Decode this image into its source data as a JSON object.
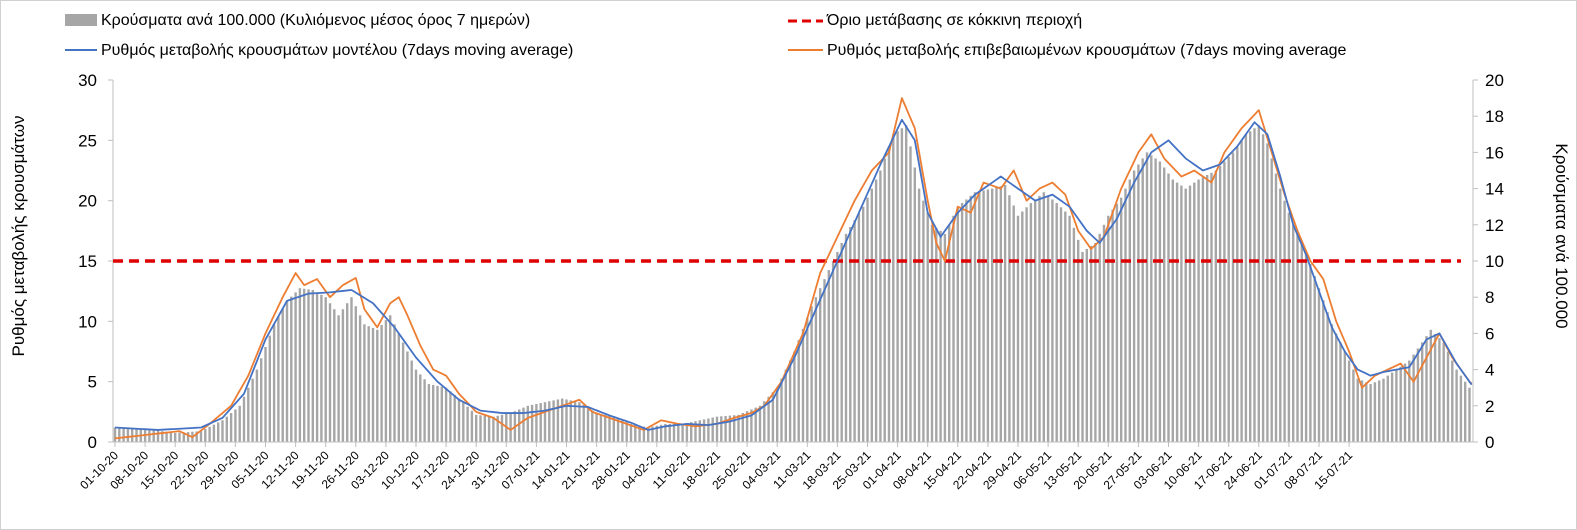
{
  "colors": {
    "bars": "#a6a6a6",
    "model_line": "#4472c4",
    "confirmed_line": "#ed7d31",
    "threshold_line": "#e00000",
    "axis": "#bfbfbf"
  },
  "chart_data": {
    "type": "bar",
    "legend": {
      "bars": "Κρούσματα ανά 100.000 (Κυλιόμενος μέσος όρος 7 ημερών)",
      "threshold": "Όριο μετάβασης σε κόκκινη περιοχή",
      "model": "Ρυθμός μεταβολής κρουσμάτων μοντέλου (7days moving average)",
      "confirmed": "Ρυθμός μεταβολής επιβεβαιωμένων κρουσμάτων (7days moving average"
    },
    "ylabel_left": "Ρυθμός μεταβολής κρουσμάτων",
    "ylabel_right": "Κρούσματα ανά 100.000",
    "ylim_left": [
      0,
      30
    ],
    "ylim_right": [
      0,
      20
    ],
    "yticks_left": [
      "0",
      "5",
      "10",
      "15",
      "20",
      "25",
      "30"
    ],
    "yticks_right": [
      "0",
      "2",
      "4",
      "6",
      "8",
      "10",
      "12",
      "14",
      "16",
      "18",
      "20"
    ],
    "start_date": "2020-10-01",
    "n_days": 300,
    "x_tick_labels": [
      "01-10-20",
      "08-10-20",
      "15-10-20",
      "22-10-20",
      "29-10-20",
      "05-11-20",
      "12-11-20",
      "19-11-20",
      "26-11-20",
      "03-12-20",
      "10-12-20",
      "17-12-20",
      "24-12-20",
      "31-12-20",
      "07-01-21",
      "14-01-21",
      "21-01-21",
      "28-01-21",
      "04-02-21",
      "11-02-21",
      "18-02-21",
      "25-02-21",
      "04-03-21",
      "11-03-21",
      "18-03-21",
      "25-03-21",
      "01-04-21",
      "08-04-21",
      "15-04-21",
      "22-04-21",
      "29-04-21",
      "06-05-21",
      "13-05-21",
      "20-05-21",
      "27-05-21",
      "03-06-21",
      "10-06-21",
      "17-06-21",
      "24-06-21",
      "01-07-21",
      "08-07-21",
      "15-07-21"
    ],
    "threshold": 15,
    "model_anchors": [
      [
        0,
        1.2
      ],
      [
        10,
        1.0
      ],
      [
        20,
        1.2
      ],
      [
        25,
        2.0
      ],
      [
        30,
        4.0
      ],
      [
        35,
        8.5
      ],
      [
        40,
        11.7
      ],
      [
        45,
        12.3
      ],
      [
        50,
        12.4
      ],
      [
        55,
        12.6
      ],
      [
        60,
        11.5
      ],
      [
        65,
        9.5
      ],
      [
        70,
        7.0
      ],
      [
        75,
        5.0
      ],
      [
        80,
        3.5
      ],
      [
        85,
        2.6
      ],
      [
        90,
        2.4
      ],
      [
        95,
        2.4
      ],
      [
        100,
        2.6
      ],
      [
        105,
        3.0
      ],
      [
        110,
        2.9
      ],
      [
        115,
        2.2
      ],
      [
        120,
        1.6
      ],
      [
        124,
        1.0
      ],
      [
        128,
        1.3
      ],
      [
        133,
        1.5
      ],
      [
        138,
        1.4
      ],
      [
        143,
        1.7
      ],
      [
        148,
        2.2
      ],
      [
        153,
        3.5
      ],
      [
        158,
        7.0
      ],
      [
        163,
        11.0
      ],
      [
        168,
        15.0
      ],
      [
        173,
        19.0
      ],
      [
        178,
        23.0
      ],
      [
        183,
        26.7
      ],
      [
        186,
        25.0
      ],
      [
        189,
        19.0
      ],
      [
        192,
        17.0
      ],
      [
        196,
        19.0
      ],
      [
        200,
        20.5
      ],
      [
        206,
        22.0
      ],
      [
        210,
        21.0
      ],
      [
        214,
        20.0
      ],
      [
        218,
        20.5
      ],
      [
        222,
        19.5
      ],
      [
        226,
        17.5
      ],
      [
        229,
        16.5
      ],
      [
        233,
        18.5
      ],
      [
        237,
        21.5
      ],
      [
        241,
        24.0
      ],
      [
        245,
        25.0
      ],
      [
        249,
        23.5
      ],
      [
        253,
        22.5
      ],
      [
        257,
        23.0
      ],
      [
        261,
        24.5
      ],
      [
        265,
        26.5
      ],
      [
        268,
        25.5
      ],
      [
        271,
        22.0
      ],
      [
        274,
        18.0
      ],
      [
        277,
        15.5
      ],
      [
        280,
        12.5
      ],
      [
        283,
        9.5
      ],
      [
        286,
        7.5
      ],
      [
        289,
        6.0
      ],
      [
        292,
        5.5
      ],
      [
        295,
        5.8
      ],
      [
        298,
        6.0
      ],
      [
        301,
        6.2
      ],
      [
        305,
        8.5
      ],
      [
        308,
        9.0
      ],
      [
        312,
        6.5
      ],
      [
        316,
        4.5
      ],
      [
        320,
        3.5
      ]
    ],
    "confirmed_anchors": [
      [
        0,
        0.3
      ],
      [
        5,
        0.5
      ],
      [
        10,
        0.7
      ],
      [
        15,
        0.9
      ],
      [
        18,
        0.4
      ],
      [
        22,
        1.5
      ],
      [
        27,
        3.0
      ],
      [
        31,
        5.5
      ],
      [
        35,
        9.0
      ],
      [
        39,
        12.0
      ],
      [
        42,
        14.0
      ],
      [
        44,
        13.0
      ],
      [
        47,
        13.5
      ],
      [
        50,
        12.0
      ],
      [
        53,
        13.0
      ],
      [
        56,
        13.6
      ],
      [
        58,
        11.0
      ],
      [
        61,
        9.5
      ],
      [
        64,
        11.5
      ],
      [
        66,
        12.0
      ],
      [
        68,
        10.5
      ],
      [
        71,
        8.0
      ],
      [
        74,
        6.0
      ],
      [
        77,
        5.5
      ],
      [
        80,
        4.0
      ],
      [
        84,
        2.5
      ],
      [
        88,
        2.0
      ],
      [
        92,
        1.0
      ],
      [
        96,
        2.0
      ],
      [
        100,
        2.5
      ],
      [
        104,
        3.0
      ],
      [
        108,
        3.5
      ],
      [
        111,
        2.5
      ],
      [
        115,
        2.0
      ],
      [
        119,
        1.5
      ],
      [
        123,
        1.0
      ],
      [
        127,
        1.8
      ],
      [
        131,
        1.5
      ],
      [
        135,
        1.3
      ],
      [
        140,
        1.5
      ],
      [
        144,
        2.0
      ],
      [
        148,
        2.4
      ],
      [
        151,
        3.0
      ],
      [
        155,
        5.0
      ],
      [
        160,
        9.0
      ],
      [
        164,
        14.0
      ],
      [
        168,
        17.0
      ],
      [
        172,
        20.0
      ],
      [
        176,
        22.5
      ],
      [
        180,
        24.0
      ],
      [
        183,
        28.5
      ],
      [
        186,
        26.0
      ],
      [
        189,
        20.0
      ],
      [
        191,
        16.5
      ],
      [
        193,
        15.0
      ],
      [
        196,
        19.5
      ],
      [
        199,
        19.0
      ],
      [
        202,
        21.5
      ],
      [
        206,
        21.0
      ],
      [
        209,
        22.5
      ],
      [
        212,
        20.0
      ],
      [
        215,
        21.0
      ],
      [
        218,
        21.5
      ],
      [
        221,
        20.5
      ],
      [
        224,
        17.5
      ],
      [
        227,
        16.0
      ],
      [
        230,
        17.0
      ],
      [
        234,
        21.0
      ],
      [
        238,
        24.0
      ],
      [
        241,
        25.5
      ],
      [
        244,
        23.5
      ],
      [
        248,
        22.0
      ],
      [
        251,
        22.5
      ],
      [
        255,
        21.5
      ],
      [
        258,
        24.0
      ],
      [
        262,
        26.0
      ],
      [
        266,
        27.5
      ],
      [
        269,
        24.0
      ],
      [
        272,
        20.5
      ],
      [
        275,
        17.5
      ],
      [
        278,
        15.0
      ],
      [
        281,
        13.5
      ],
      [
        284,
        10.0
      ],
      [
        287,
        7.5
      ],
      [
        290,
        4.5
      ],
      [
        293,
        5.5
      ],
      [
        296,
        6.0
      ],
      [
        299,
        6.5
      ],
      [
        302,
        5.0
      ],
      [
        305,
        7.0
      ],
      [
        308,
        9.0
      ],
      [
        311,
        7.0
      ],
      [
        315,
        5.0
      ],
      [
        320,
        3.5
      ]
    ],
    "bar_anchors": [
      [
        0,
        0.8
      ],
      [
        8,
        0.7
      ],
      [
        14,
        0.5
      ],
      [
        20,
        0.6
      ],
      [
        25,
        1.2
      ],
      [
        29,
        2.0
      ],
      [
        33,
        4.0
      ],
      [
        37,
        6.5
      ],
      [
        40,
        7.8
      ],
      [
        43,
        8.5
      ],
      [
        46,
        8.4
      ],
      [
        49,
        8.0
      ],
      [
        52,
        7.0
      ],
      [
        55,
        8.0
      ],
      [
        58,
        6.5
      ],
      [
        61,
        6.2
      ],
      [
        64,
        7.0
      ],
      [
        67,
        5.5
      ],
      [
        70,
        4.0
      ],
      [
        73,
        3.2
      ],
      [
        77,
        3.0
      ],
      [
        80,
        2.4
      ],
      [
        84,
        1.5
      ],
      [
        88,
        1.4
      ],
      [
        92,
        1.6
      ],
      [
        96,
        2.0
      ],
      [
        100,
        2.2
      ],
      [
        104,
        2.4
      ],
      [
        108,
        2.2
      ],
      [
        112,
        1.6
      ],
      [
        116,
        1.4
      ],
      [
        120,
        1.0
      ],
      [
        124,
        0.8
      ],
      [
        128,
        1.0
      ],
      [
        132,
        1.0
      ],
      [
        136,
        1.2
      ],
      [
        140,
        1.4
      ],
      [
        145,
        1.5
      ],
      [
        150,
        2.0
      ],
      [
        154,
        3.0
      ],
      [
        158,
        5.0
      ],
      [
        162,
        7.5
      ],
      [
        166,
        9.5
      ],
      [
        170,
        11.5
      ],
      [
        174,
        13.0
      ],
      [
        178,
        15.0
      ],
      [
        181,
        17.0
      ],
      [
        184,
        17.5
      ],
      [
        187,
        14.0
      ],
      [
        190,
        12.0
      ],
      [
        193,
        11.5
      ],
      [
        196,
        13.0
      ],
      [
        200,
        13.8
      ],
      [
        204,
        14.0
      ],
      [
        207,
        14.2
      ],
      [
        210,
        12.5
      ],
      [
        213,
        13.2
      ],
      [
        216,
        13.8
      ],
      [
        219,
        13.2
      ],
      [
        222,
        12.5
      ],
      [
        225,
        10.5
      ],
      [
        228,
        11.0
      ],
      [
        231,
        12.5
      ],
      [
        234,
        13.5
      ],
      [
        237,
        15.0
      ],
      [
        240,
        16.0
      ],
      [
        243,
        15.5
      ],
      [
        246,
        14.5
      ],
      [
        249,
        14.0
      ],
      [
        252,
        14.5
      ],
      [
        256,
        15.0
      ],
      [
        260,
        16.0
      ],
      [
        263,
        17.0
      ],
      [
        266,
        17.5
      ],
      [
        268,
        16.5
      ],
      [
        271,
        14.0
      ],
      [
        274,
        12.0
      ],
      [
        277,
        10.5
      ],
      [
        280,
        8.5
      ],
      [
        283,
        6.5
      ],
      [
        286,
        5.0
      ],
      [
        289,
        3.5
      ],
      [
        292,
        3.2
      ],
      [
        295,
        3.5
      ],
      [
        298,
        4.0
      ],
      [
        301,
        4.5
      ],
      [
        304,
        5.5
      ],
      [
        306,
        6.2
      ],
      [
        309,
        5.5
      ],
      [
        312,
        4.0
      ],
      [
        315,
        3.0
      ],
      [
        318,
        2.4
      ],
      [
        320,
        2.2
      ]
    ]
  }
}
